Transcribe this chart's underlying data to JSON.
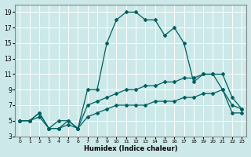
{
  "xlabel": "Humidex (Indice chaleur)",
  "bg_color": "#cce8e8",
  "grid_color": "#ffffff",
  "line_color": "#006060",
  "xlim": [
    -0.5,
    23.5
  ],
  "ylim": [
    3,
    20
  ],
  "xticks": [
    0,
    1,
    2,
    3,
    4,
    5,
    6,
    7,
    8,
    9,
    10,
    11,
    12,
    13,
    14,
    15,
    16,
    17,
    18,
    19,
    20,
    21,
    22,
    23
  ],
  "yticks": [
    3,
    5,
    7,
    9,
    11,
    13,
    15,
    17,
    19
  ],
  "line1_x": [
    0,
    1,
    2,
    3,
    4,
    5,
    6,
    7,
    8,
    9,
    10,
    11,
    12,
    13,
    14,
    15,
    16,
    17,
    18,
    19,
    20,
    21,
    22,
    23
  ],
  "line1_y": [
    5,
    5,
    6,
    4,
    5,
    5,
    4,
    9,
    9,
    15,
    18,
    19,
    19,
    18,
    18,
    16,
    17,
    15,
    10,
    11,
    11,
    9,
    6,
    6
  ],
  "line2_x": [
    0,
    1,
    2,
    3,
    4,
    5,
    6,
    7,
    8,
    9,
    10,
    11,
    12,
    13,
    14,
    15,
    16,
    17,
    18,
    19,
    20,
    21,
    22,
    23
  ],
  "line2_y": [
    5,
    5,
    6,
    4,
    4,
    5,
    4,
    7,
    7.5,
    8,
    8.5,
    9,
    9,
    9.5,
    9.5,
    10,
    10,
    10.5,
    10.5,
    11,
    11,
    11,
    8,
    6.5
  ],
  "line3_x": [
    0,
    1,
    2,
    3,
    4,
    5,
    6,
    7,
    8,
    9,
    10,
    11,
    12,
    13,
    14,
    15,
    16,
    17,
    18,
    19,
    20,
    21,
    22,
    23
  ],
  "line3_y": [
    5,
    5,
    5.5,
    4,
    4,
    4.5,
    4,
    5.5,
    6,
    6.5,
    7,
    7,
    7,
    7,
    7.5,
    7.5,
    7.5,
    8,
    8,
    8.5,
    8.5,
    9,
    7,
    6.5
  ]
}
